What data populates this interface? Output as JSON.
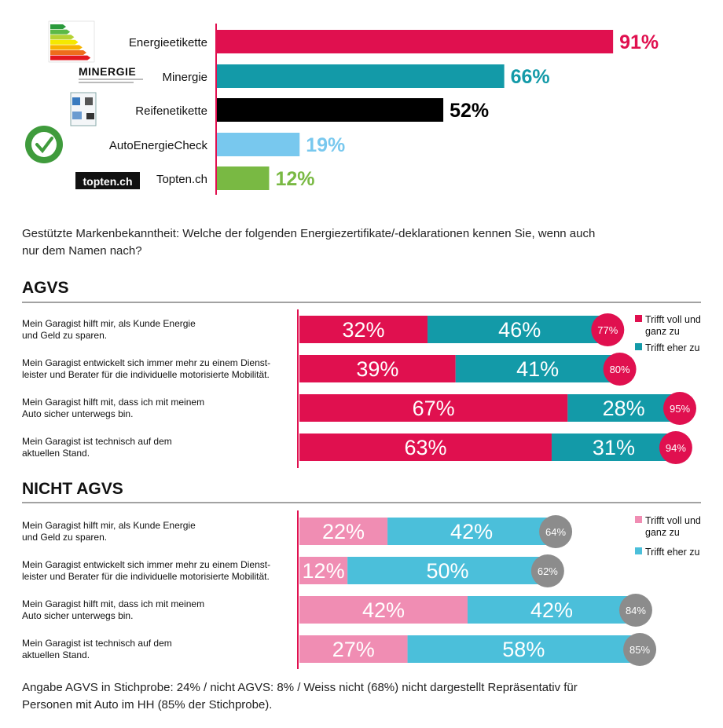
{
  "chart_data": [
    {
      "type": "bar",
      "orientation": "horizontal",
      "categories": [
        "Energieetikette",
        "Minergie",
        "Reifenetikette",
        "AutoEnergieCheck",
        "Topten.ch"
      ],
      "values": [
        91,
        66,
        52,
        19,
        12
      ],
      "value_labels": [
        "91%",
        "66%",
        "52%",
        "19%",
        "12%"
      ],
      "colors": [
        "#e0104f",
        "#139aa8",
        "#000000",
        "#78c8ee",
        "#79b943"
      ],
      "logos": [
        "energy-label-logo",
        "minergie-logo",
        "tyre-label-logo",
        "autoenergiecheck-logo",
        "topten-logo"
      ],
      "logo_text": {
        "minergie": "MINERGIE",
        "topten": "topten.ch"
      },
      "caption": "Gestützte Markenbekanntheit: Welche der folgenden Energiezertifikate/-deklarationen kennen Sie, wenn auch nur dem Namen nach?",
      "xlim": [
        0,
        100
      ]
    },
    {
      "type": "bar",
      "stacked": true,
      "orientation": "horizontal",
      "title": "AGVS",
      "categories": [
        "Mein Garagist hilft mir, als Kunde Energie und Geld zu sparen.",
        "Mein Garagist entwickelt sich immer mehr zu einem Dienstleister und Berater für die individuelle motorisierte Mobilität.",
        "Mein Garagist hilft mit, dass ich mit meinem Auto sicher unterwegs bin.",
        "Mein Garagist ist technisch auf dem aktuellen Stand."
      ],
      "category_lines": [
        [
          "Mein Garagist hilft mir, als Kunde Energie",
          "und Geld zu sparen."
        ],
        [
          "Mein Garagist entwickelt sich immer mehr zu einem Dienst-",
          "leister und Berater für die individuelle motorisierte Mobilität."
        ],
        [
          "Mein Garagist hilft mit, dass ich mit meinem",
          "Auto sicher unterwegs bin."
        ],
        [
          "Mein Garagist ist technisch auf dem",
          "aktuellen Stand."
        ]
      ],
      "series": [
        {
          "name": "Trifft voll und ganz zu",
          "values": [
            32,
            39,
            67,
            63
          ],
          "color": "#e0104f"
        },
        {
          "name": "Trifft eher zu",
          "values": [
            46,
            41,
            28,
            31
          ],
          "color": "#139aa8"
        }
      ],
      "legend_lines": [
        [
          "Trifft voll und",
          "ganz zu"
        ],
        [
          "Trifft eher zu"
        ]
      ],
      "totals": [
        77,
        80,
        95,
        94
      ],
      "total_color": "#e0104f",
      "legend": "top-right",
      "xlim": [
        0,
        100
      ]
    },
    {
      "type": "bar",
      "stacked": true,
      "orientation": "horizontal",
      "title": "NICHT AGVS",
      "categories": [
        "Mein Garagist hilft mir, als Kunde Energie und Geld zu sparen.",
        "Mein Garagist entwickelt sich immer mehr zu einem Dienstleister und Berater für die individuelle motorisierte Mobilität.",
        "Mein Garagist hilft mit, dass ich mit meinem Auto sicher unterwegs bin.",
        "Mein Garagist ist technisch auf dem aktuellen Stand."
      ],
      "category_lines": [
        [
          "Mein Garagist hilft mir, als Kunde Energie",
          "und Geld zu sparen."
        ],
        [
          "Mein Garagist entwickelt sich immer mehr zu einem Dienst-",
          "leister und Berater für die individuelle motorisierte Mobilität."
        ],
        [
          "Mein Garagist hilft mit, dass ich mit meinem",
          "Auto sicher unterwegs bin."
        ],
        [
          "Mein Garagist ist technisch auf dem",
          "aktuellen Stand."
        ]
      ],
      "series": [
        {
          "name": "Trifft voll und ganz zu",
          "values": [
            22,
            12,
            42,
            27
          ],
          "color": "#f08db3"
        },
        {
          "name": "Trifft eher zu",
          "values": [
            42,
            50,
            42,
            58
          ],
          "color": "#4bbfda"
        }
      ],
      "legend_lines": [
        [
          "Trifft voll und",
          "ganz zu"
        ],
        [
          "Trifft eher zu"
        ]
      ],
      "totals": [
        64,
        62,
        84,
        85
      ],
      "total_color": "#8c8c8c",
      "legend": "top-right",
      "xlim": [
        0,
        100
      ]
    }
  ],
  "footnote": [
    "Angabe AGVS in Stichprobe: 24% / nicht AGVS: 8% / Weiss nicht (68%) nicht dargestellt Repräsentativ für",
    "Personen mit Auto im HH (85% der Stichprobe)."
  ]
}
